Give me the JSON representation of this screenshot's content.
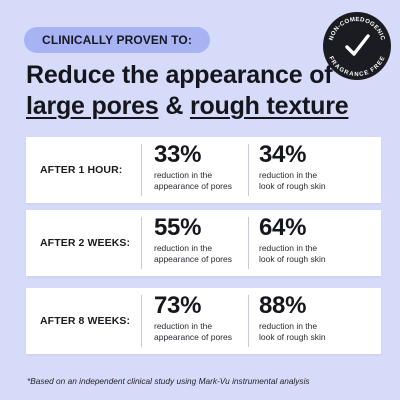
{
  "header": {
    "pill_label": "CLINICALLY PROVEN TO:",
    "title_line1": "Reduce the appearance of",
    "title_part_a": "large pores",
    "title_amp": " & ",
    "title_part_b": "rough texture"
  },
  "badge": {
    "text_top": "NON-COMEDOGENIC",
    "text_bottom": "FRAGRANCE FREE",
    "icon": "checkmark-icon"
  },
  "results": [
    {
      "label": "AFTER 1 HOUR:",
      "pores_value": "33%",
      "pores_desc_1": "reduction in the",
      "pores_desc_2": "appearance of pores",
      "texture_value": "34%",
      "texture_desc_1": "reduction in the",
      "texture_desc_2": "look of rough skin"
    },
    {
      "label": "AFTER 2 WEEKS:",
      "pores_value": "55%",
      "pores_desc_1": "reduction in the",
      "pores_desc_2": "appearance of pores",
      "texture_value": "64%",
      "texture_desc_1": "reduction in the",
      "texture_desc_2": "look of rough skin"
    },
    {
      "label": "AFTER 8 WEEKS:",
      "pores_value": "73%",
      "pores_desc_1": "reduction in the",
      "pores_desc_2": "appearance of pores",
      "texture_value": "88%",
      "texture_desc_1": "reduction in the",
      "texture_desc_2": "look of rough skin"
    }
  ],
  "footnote": "*Based on an independent clinical study using Mark-Vu instrumental analysis",
  "colors": {
    "background": "#d7dbfa",
    "pill": "#a7b3f2",
    "card": "#ffffff",
    "badge": "#1b1c22"
  }
}
